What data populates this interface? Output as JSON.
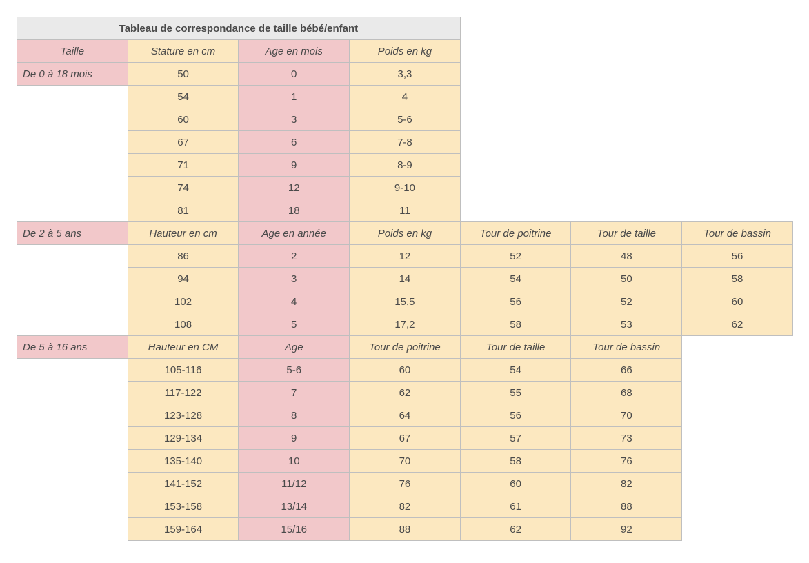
{
  "title": "Tableau de correspondance de taille bébé/enfant",
  "colors": {
    "title_bg": "#eaeaea",
    "pink": "#f2c8ca",
    "cream": "#fce8c0",
    "border": "#bfbfbf",
    "text": "#4a4a4a"
  },
  "section1": {
    "heading": "De 0 à 18 mois",
    "cols": {
      "taille": "Taille",
      "stature": "Stature en cm",
      "age": "Age en mois",
      "poids": "Poids en kg"
    },
    "rows": [
      {
        "stature": "50",
        "age": "0",
        "poids": "3,3"
      },
      {
        "stature": "54",
        "age": "1",
        "poids": "4"
      },
      {
        "stature": "60",
        "age": "3",
        "poids": "5-6"
      },
      {
        "stature": "67",
        "age": "6",
        "poids": "7-8"
      },
      {
        "stature": "71",
        "age": "9",
        "poids": "8-9"
      },
      {
        "stature": "74",
        "age": "12",
        "poids": "9-10"
      },
      {
        "stature": "81",
        "age": "18",
        "poids": "11"
      }
    ]
  },
  "section2": {
    "heading": "De 2 à 5 ans",
    "cols": {
      "hauteur": "Hauteur en cm",
      "age": "Age en année",
      "poids": "Poids en kg",
      "poitrine": "Tour de poitrine",
      "taille": "Tour de taille",
      "bassin": "Tour de bassin"
    },
    "rows": [
      {
        "hauteur": "86",
        "age": "2",
        "poids": "12",
        "poitrine": "52",
        "taille": "48",
        "bassin": "56"
      },
      {
        "hauteur": "94",
        "age": "3",
        "poids": "14",
        "poitrine": "54",
        "taille": "50",
        "bassin": "58"
      },
      {
        "hauteur": "102",
        "age": "4",
        "poids": "15,5",
        "poitrine": "56",
        "taille": "52",
        "bassin": "60"
      },
      {
        "hauteur": "108",
        "age": "5",
        "poids": "17,2",
        "poitrine": "58",
        "taille": "53",
        "bassin": "62"
      }
    ]
  },
  "section3": {
    "heading": "De 5 à 16 ans",
    "cols": {
      "hauteur": "Hauteur en CM",
      "age": "Age",
      "poitrine": "Tour de poitrine",
      "taille": "Tour de taille",
      "bassin": "Tour de bassin"
    },
    "rows": [
      {
        "hauteur": "105-116",
        "age": "5-6",
        "poitrine": "60",
        "taille": "54",
        "bassin": "66"
      },
      {
        "hauteur": "117-122",
        "age": "7",
        "poitrine": "62",
        "taille": "55",
        "bassin": "68"
      },
      {
        "hauteur": "123-128",
        "age": "8",
        "poitrine": "64",
        "taille": "56",
        "bassin": "70"
      },
      {
        "hauteur": "129-134",
        "age": "9",
        "poitrine": "67",
        "taille": "57",
        "bassin": "73"
      },
      {
        "hauteur": "135-140",
        "age": "10",
        "poitrine": "70",
        "taille": "58",
        "bassin": "76"
      },
      {
        "hauteur": "141-152",
        "age": "11/12",
        "poitrine": "76",
        "taille": "60",
        "bassin": "82"
      },
      {
        "hauteur": "153-158",
        "age": "13/14",
        "poitrine": "82",
        "taille": "61",
        "bassin": "88"
      },
      {
        "hauteur": "159-164",
        "age": "15/16",
        "poitrine": "88",
        "taille": "62",
        "bassin": "92"
      }
    ]
  }
}
